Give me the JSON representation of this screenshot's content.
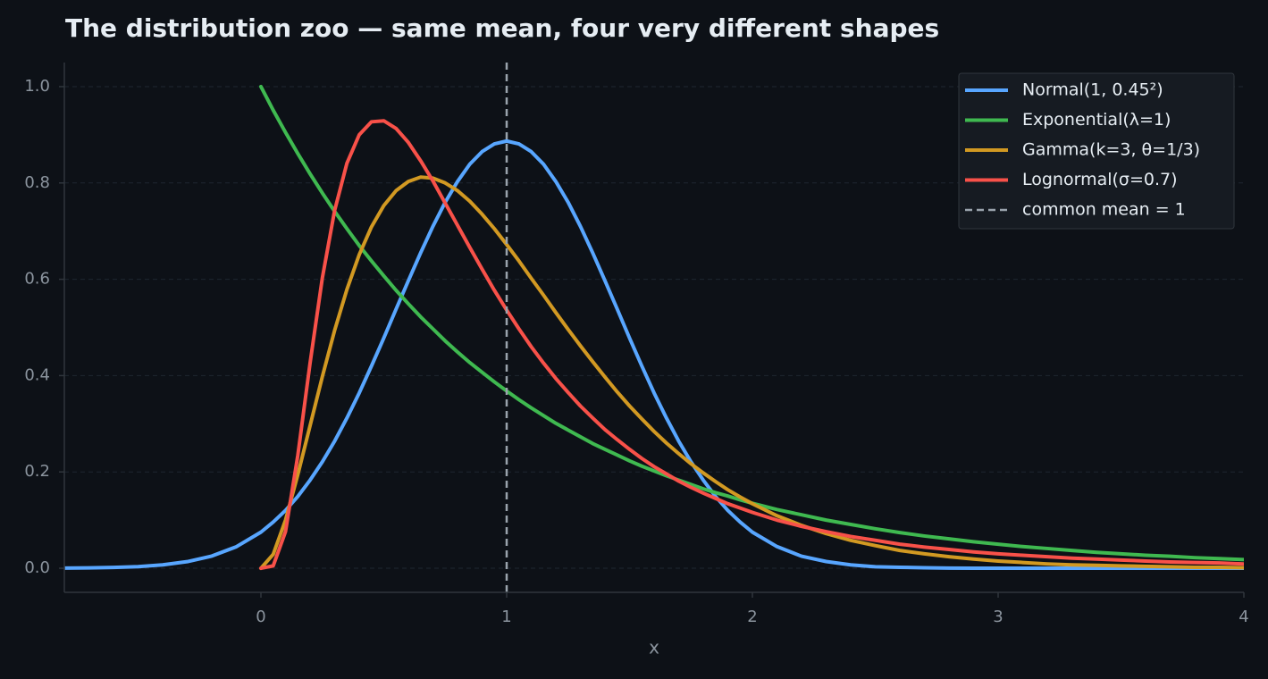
{
  "chart_data": {
    "type": "line",
    "title": "The distribution zoo — same mean, four very different shapes",
    "xlabel": "x",
    "xlim": [
      -0.8,
      4
    ],
    "ylim": [
      -0.05,
      1.05
    ],
    "xticks": [
      0,
      1,
      2,
      3,
      4
    ],
    "yticks": [
      {
        "value": 0,
        "label": "0.0"
      },
      0.2,
      0.4,
      0.6,
      0.8,
      {
        "value": 1,
        "label": "1.0"
      }
    ],
    "grid": true,
    "legend": "upper right",
    "x": [
      -0.8,
      -0.7,
      -0.6,
      -0.5,
      -0.4,
      -0.3,
      -0.2,
      -0.1,
      0,
      0.05,
      0.1,
      0.15,
      0.2,
      0.25,
      0.3,
      0.35,
      0.4,
      0.45,
      0.5,
      0.55,
      0.6,
      0.65,
      0.7,
      0.75,
      0.8,
      0.85,
      0.9,
      0.95,
      1,
      1.05,
      1.1,
      1.15,
      1.2,
      1.25,
      1.3,
      1.35,
      1.4,
      1.45,
      1.5,
      1.55,
      1.6,
      1.65,
      1.7,
      1.75,
      1.8,
      1.85,
      1.9,
      1.95,
      2,
      2.1,
      2.2,
      2.3,
      2.4,
      2.5,
      2.6,
      2.7,
      2.8,
      2.9,
      3,
      3.1,
      3.2,
      3.3,
      3.4,
      3.5,
      3.6,
      3.7,
      3.8,
      3.9,
      4
    ],
    "series": [
      {
        "name": "Normal(1, 0.45²)",
        "color": "#58a6ff",
        "values": [
          0.0003,
          0.0007,
          0.0016,
          0.0034,
          0.007,
          0.0137,
          0.0253,
          0.0447,
          0.075,
          0.096,
          0.12,
          0.149,
          0.183,
          0.221,
          0.264,
          0.312,
          0.364,
          0.42,
          0.478,
          0.538,
          0.597,
          0.655,
          0.71,
          0.76,
          0.803,
          0.839,
          0.865,
          0.881,
          0.887,
          0.881,
          0.865,
          0.839,
          0.803,
          0.76,
          0.71,
          0.655,
          0.597,
          0.538,
          0.478,
          0.42,
          0.364,
          0.312,
          0.264,
          0.221,
          0.183,
          0.149,
          0.12,
          0.096,
          0.075,
          0.045,
          0.025,
          0.014,
          0.007,
          0.003,
          0.002,
          0.001,
          0.0003,
          0.0001,
          0,
          0,
          0,
          0,
          0,
          0,
          0,
          0,
          0,
          0,
          0
        ]
      },
      {
        "name": "Exponential(λ=1)",
        "color": "#3fb950",
        "values": [
          null,
          null,
          null,
          null,
          null,
          null,
          null,
          null,
          1,
          0.951,
          0.905,
          0.861,
          0.819,
          0.779,
          0.741,
          0.705,
          0.67,
          0.638,
          0.607,
          0.577,
          0.549,
          0.522,
          0.497,
          0.472,
          0.449,
          0.427,
          0.407,
          0.387,
          0.368,
          0.35,
          0.333,
          0.317,
          0.301,
          0.287,
          0.273,
          0.259,
          0.247,
          0.235,
          0.223,
          0.212,
          0.202,
          0.192,
          0.183,
          0.174,
          0.165,
          0.157,
          0.15,
          0.142,
          0.135,
          0.122,
          0.111,
          0.1,
          0.091,
          0.082,
          0.074,
          0.067,
          0.061,
          0.055,
          0.05,
          0.045,
          0.041,
          0.037,
          0.033,
          0.03,
          0.027,
          0.025,
          0.022,
          0.02,
          0.018
        ]
      },
      {
        "name": "Gamma(k=3, θ=1/3)",
        "color": "#d29922",
        "values": [
          null,
          null,
          null,
          null,
          null,
          null,
          null,
          null,
          0,
          0.029,
          0.1,
          0.194,
          0.296,
          0.398,
          0.494,
          0.579,
          0.651,
          0.709,
          0.753,
          0.784,
          0.803,
          0.812,
          0.81,
          0.8,
          0.784,
          0.762,
          0.735,
          0.705,
          0.672,
          0.638,
          0.602,
          0.567,
          0.531,
          0.496,
          0.462,
          0.429,
          0.397,
          0.366,
          0.337,
          0.31,
          0.284,
          0.26,
          0.238,
          0.217,
          0.198,
          0.18,
          0.163,
          0.148,
          0.134,
          0.109,
          0.089,
          0.072,
          0.058,
          0.047,
          0.037,
          0.03,
          0.024,
          0.019,
          0.015,
          0.012,
          0.009,
          0.007,
          0.006,
          0.005,
          0.004,
          0.003,
          0.002,
          0.002,
          0.001
        ]
      },
      {
        "name": "Lognormal(σ=0.7)",
        "color": "#f85149",
        "values": [
          null,
          null,
          null,
          null,
          null,
          null,
          null,
          null,
          0,
          0.005,
          0.076,
          0.234,
          0.426,
          0.603,
          0.743,
          0.841,
          0.9,
          0.927,
          0.929,
          0.913,
          0.884,
          0.846,
          0.804,
          0.758,
          0.712,
          0.666,
          0.621,
          0.577,
          0.536,
          0.497,
          0.46,
          0.426,
          0.394,
          0.365,
          0.337,
          0.312,
          0.288,
          0.267,
          0.247,
          0.228,
          0.211,
          0.196,
          0.181,
          0.168,
          0.156,
          0.145,
          0.134,
          0.125,
          0.116,
          0.1,
          0.087,
          0.076,
          0.066,
          0.058,
          0.05,
          0.044,
          0.039,
          0.034,
          0.03,
          0.027,
          0.024,
          0.021,
          0.019,
          0.017,
          0.015,
          0.013,
          0.012,
          0.011,
          0.009
        ]
      }
    ],
    "vline": {
      "name": "common mean = 1",
      "x": 1,
      "color": "#9aa3ad"
    }
  }
}
